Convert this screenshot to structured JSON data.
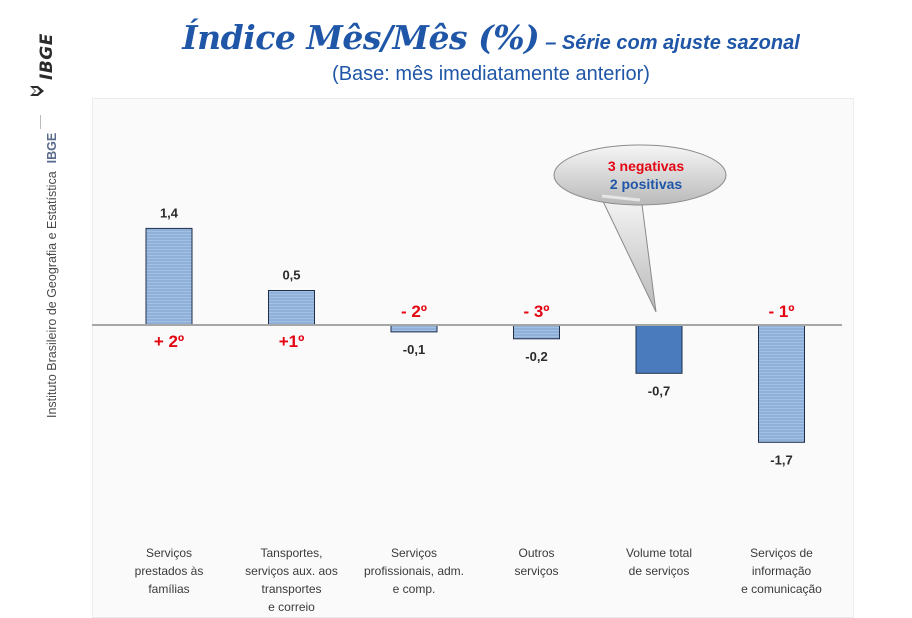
{
  "brand": {
    "logo_text": "IBGE",
    "institute_name": "Instituto Brasileiro de Geografia e Estatística",
    "institute_abbr": "IBGE"
  },
  "title": {
    "main": "Índice Mês/Mês (%)",
    "sub": "– Série com ajuste sazonal",
    "base": "(Base: mês imediatamente anterior)"
  },
  "colors": {
    "bar_light": "#8fb0d9",
    "bar_dark": "#4a7cbd",
    "rank_red": "#e30613",
    "title_blue": "#1f56a7",
    "baseline": "#a6a6a6"
  },
  "callout": {
    "line1": "3 negativas",
    "line2": "2 positivas"
  },
  "chart_data": {
    "type": "bar",
    "categories": [
      [
        "Serviços",
        "prestados às",
        "famílias"
      ],
      [
        "Tansportes,",
        "serviços aux. aos",
        "transportes",
        "e correio"
      ],
      [
        "Serviços",
        "profissionais, adm.",
        "e comp."
      ],
      [
        "Outros",
        "serviços"
      ],
      [
        "Volume total",
        "de serviços"
      ],
      [
        "Serviços de",
        "informação",
        "e comunicação"
      ]
    ],
    "values": [
      1.4,
      0.5,
      -0.1,
      -0.2,
      -0.7,
      -1.7
    ],
    "value_labels": [
      "1,4",
      "0,5",
      "-0,1",
      "-0,2",
      "-0,7",
      "-1,7"
    ],
    "rank_labels": [
      "+ 2º",
      "+1º",
      "- 2º",
      "- 3º",
      "",
      "- 1º"
    ],
    "highlight_index": 4,
    "ylim": [
      -2.0,
      2.0
    ],
    "grid": false,
    "legend": "none"
  }
}
